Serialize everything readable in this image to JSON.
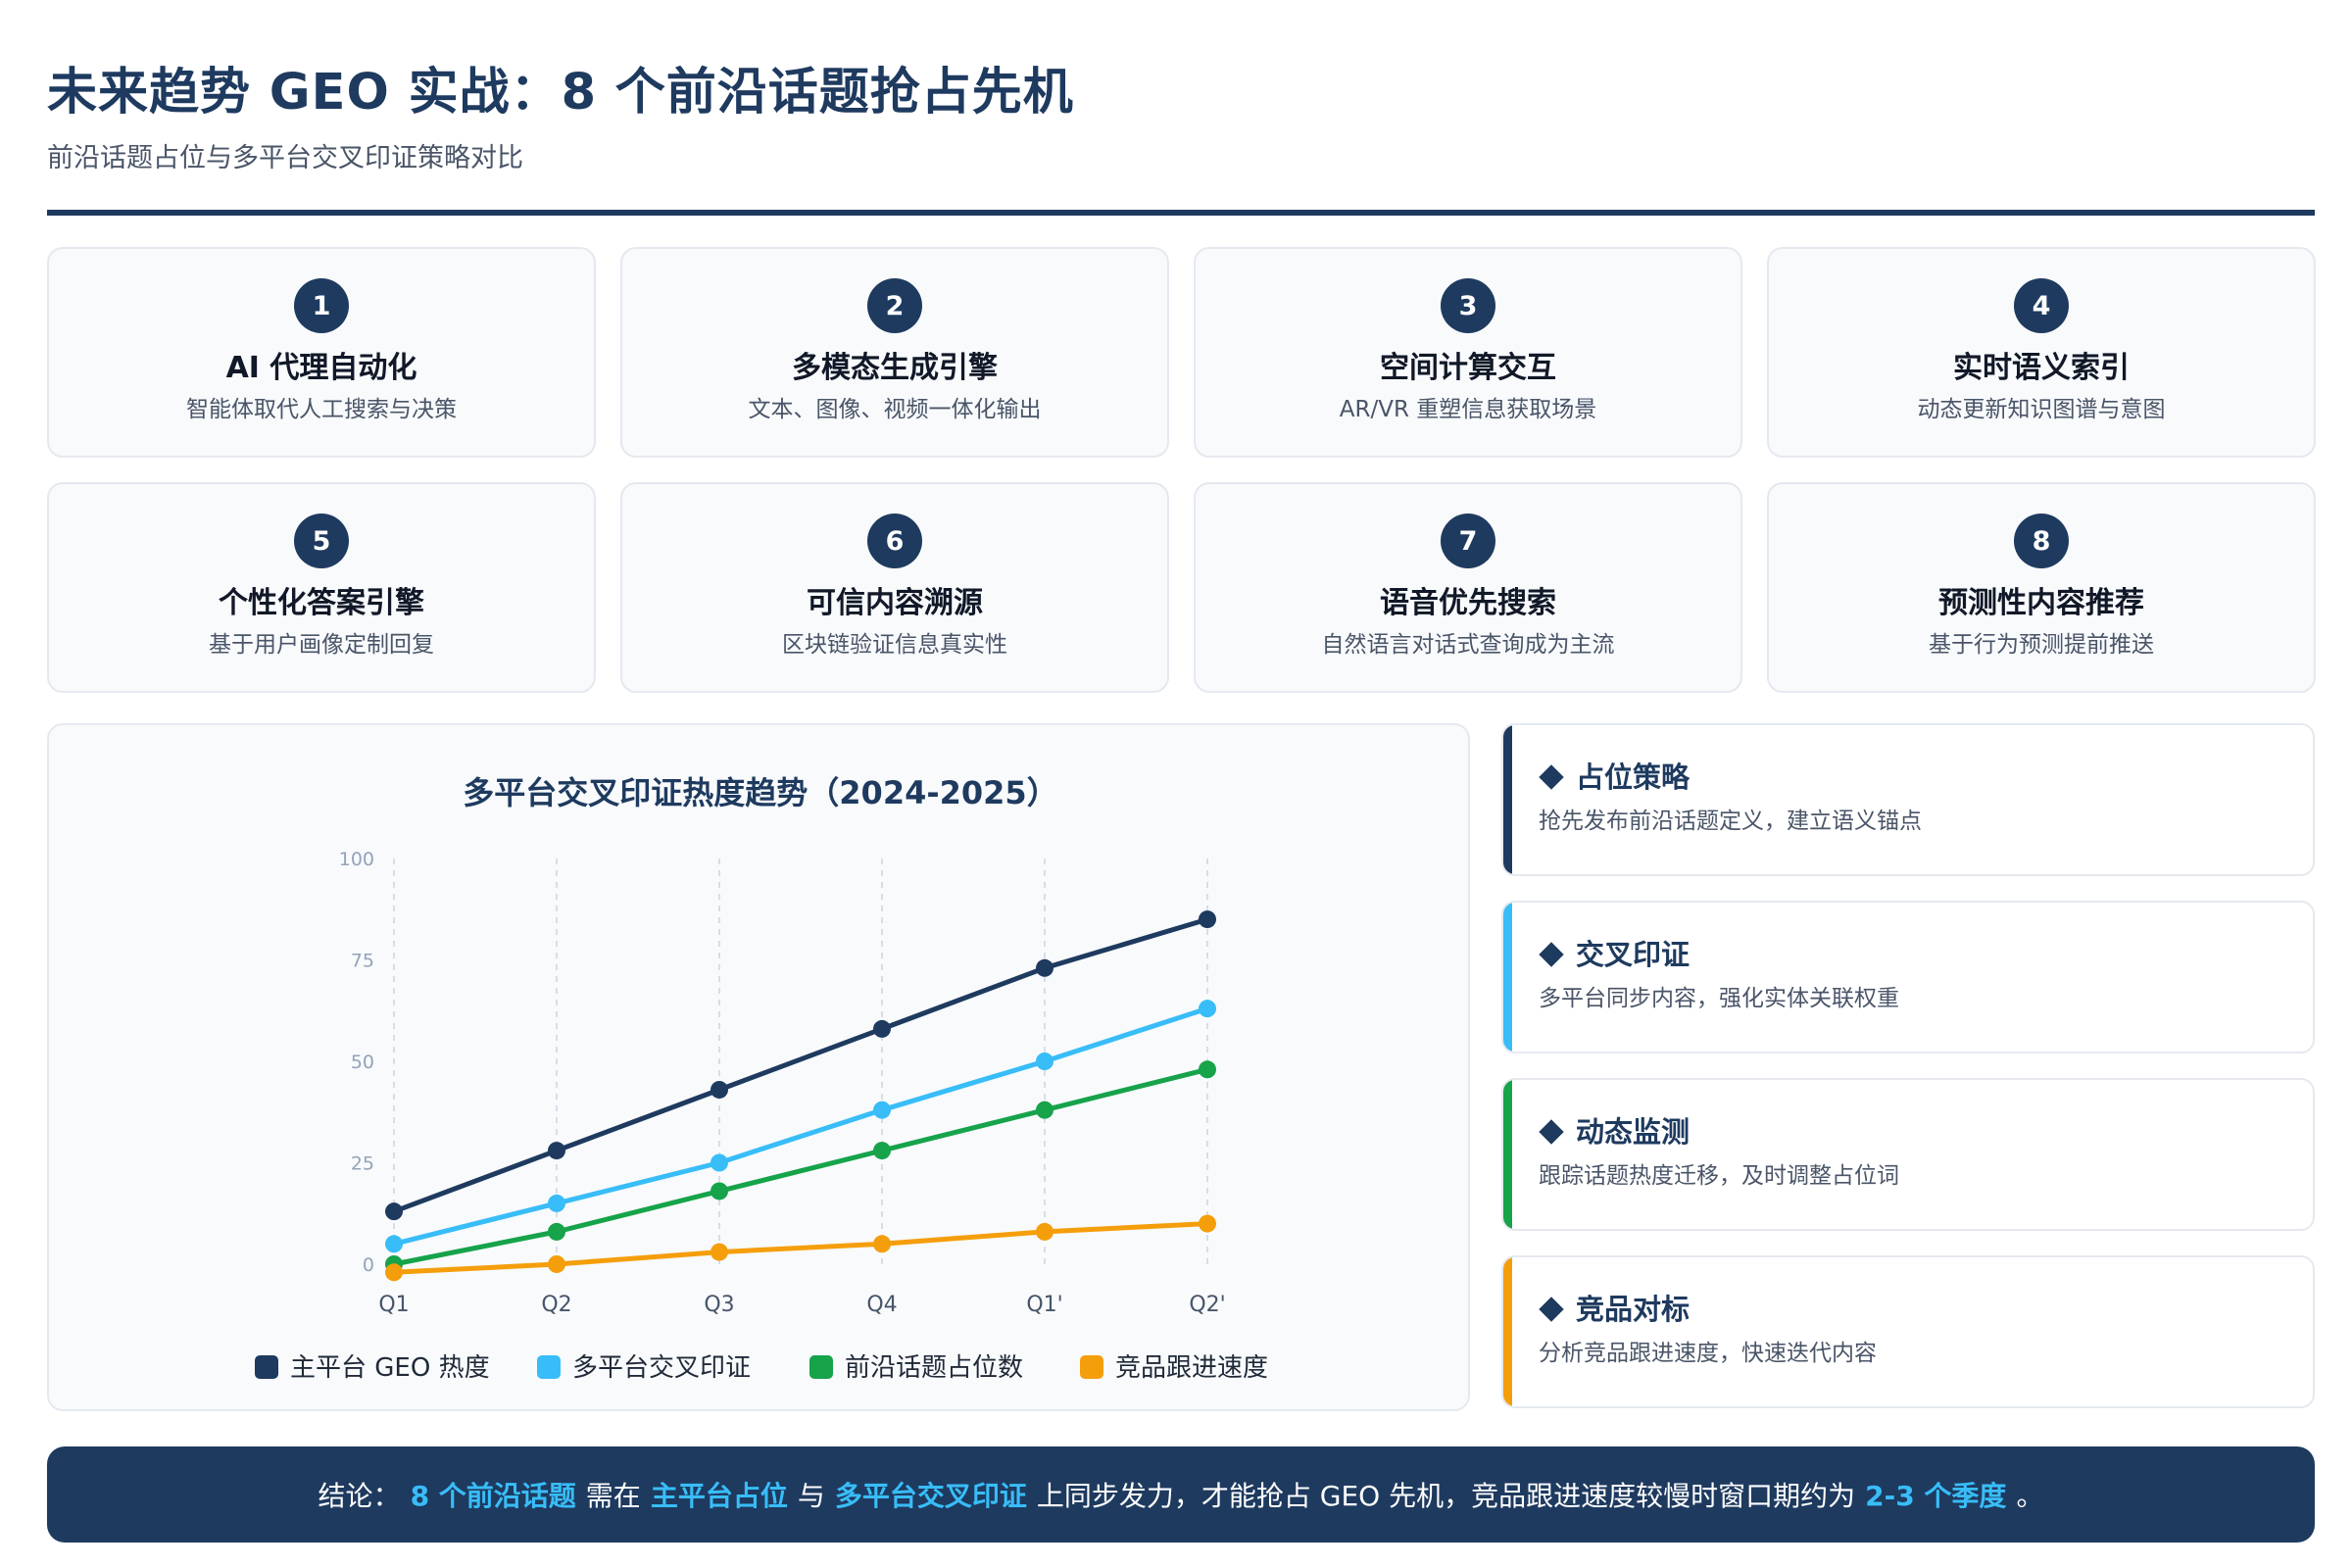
{
  "header": {
    "title": "未来趋势 GEO 实战：8 个前沿话题抢占先机",
    "subtitle": "前沿话题占位与多平台交叉印证策略对比"
  },
  "topics": [
    {
      "num": "1",
      "title": "AI 代理自动化",
      "desc": "智能体取代人工搜索与决策"
    },
    {
      "num": "2",
      "title": "多模态生成引擎",
      "desc": "文本、图像、视频一体化输出"
    },
    {
      "num": "3",
      "title": "空间计算交互",
      "desc": "AR/VR 重塑信息获取场景"
    },
    {
      "num": "4",
      "title": "实时语义索引",
      "desc": "动态更新知识图谱与意图"
    },
    {
      "num": "5",
      "title": "个性化答案引擎",
      "desc": "基于用户画像定制回复"
    },
    {
      "num": "6",
      "title": "可信内容溯源",
      "desc": "区块链验证信息真实性"
    },
    {
      "num": "7",
      "title": "语音优先搜索",
      "desc": "自然语言对话式查询成为主流"
    },
    {
      "num": "8",
      "title": "预测性内容推荐",
      "desc": "基于行为预测提前推送"
    }
  ],
  "chart_data": {
    "type": "line",
    "title": "多平台交叉印证热度趋势（2024-2025）",
    "xlabel": "",
    "ylabel": "",
    "categories": [
      "Q1",
      "Q2",
      "Q3",
      "Q4",
      "Q1'",
      "Q2'"
    ],
    "y_ticks": [
      "0",
      "25",
      "50",
      "75",
      "100"
    ],
    "ylim": [
      0,
      100
    ],
    "grid": "vertical dashed",
    "legend_position": "bottom",
    "series": [
      {
        "name": "主平台 GEO 热度",
        "color": "#1e3a5f",
        "values": [
          13,
          28,
          43,
          58,
          73,
          85
        ]
      },
      {
        "name": "多平台交叉印证",
        "color": "#38bdf8",
        "values": [
          5,
          15,
          25,
          38,
          50,
          63
        ]
      },
      {
        "name": "前沿话题占位数",
        "color": "#16a34a",
        "values": [
          0,
          8,
          18,
          28,
          38,
          48
        ]
      },
      {
        "name": "竞品跟进速度",
        "color": "#f59e0b",
        "values": [
          -2,
          0,
          3,
          5,
          8,
          10
        ]
      }
    ]
  },
  "strategies": [
    {
      "title": "占位策略",
      "desc": "抢先发布前沿话题定义，建立语义锚点",
      "color": "#1e3a5f"
    },
    {
      "title": "交叉印证",
      "desc": "多平台同步内容，强化实体关联权重",
      "color": "#38bdf8"
    },
    {
      "title": "动态监测",
      "desc": "跟踪话题热度迁移，及时调整占位词",
      "color": "#16a34a"
    },
    {
      "title": "竞品对标",
      "desc": "分析竞品跟进速度，快速迭代内容",
      "color": "#f59e0b"
    }
  ],
  "conclusion": {
    "prefix": "结论：",
    "hl1": "8 个前沿话题",
    "t1": "需在",
    "hl2": "主平台占位",
    "t2": "与",
    "hl3": "多平台交叉印证",
    "t3": "上同步发力，才能抢占 GEO 先机，竞品跟进速度较慢时窗口期约为",
    "hl4": "2-3 个季度",
    "suffix": "。"
  }
}
